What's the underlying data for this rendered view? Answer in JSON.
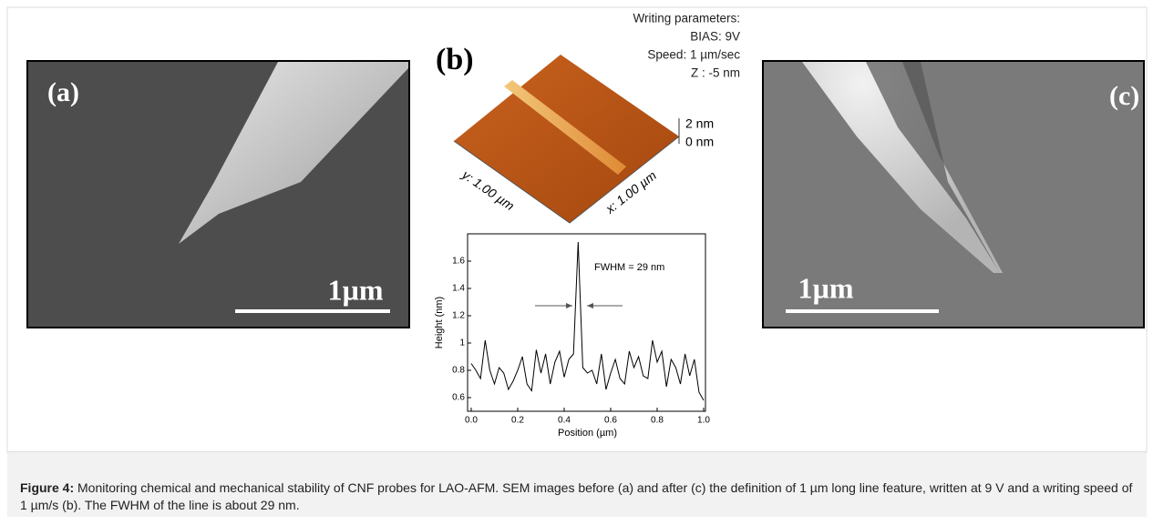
{
  "figure": {
    "panels": {
      "a": {
        "label": "(a)",
        "scale_bar": "1µm"
      },
      "b": {
        "label": "(b)",
        "parameters": [
          "Writing parameters:",
          "BIAS: 9V",
          "Speed: 1 µm/sec",
          "Z : -5 nm"
        ],
        "z_scale": [
          "2 nm",
          "0 nm"
        ],
        "x_axis_3d": "x: 1.00 µm",
        "y_axis_3d": "y: 1.00 µm"
      },
      "c": {
        "label": "(c)",
        "scale_bar": "1µm"
      }
    },
    "caption": {
      "label": "Figure 4:",
      "text": "Monitoring chemical and mechanical stability of CNF probes for LAO-AFM. SEM images before (a) and after (c) the definition of 1 µm long line feature, written at 9 V and a writing speed of 1 µm/s (b). The FWHM of the line is about 29 nm."
    }
  },
  "chart_data": {
    "type": "line",
    "xlabel": "Position (µm)",
    "ylabel": "Height (nm)",
    "annotation": "FWHM = 29 nm",
    "x": [
      0,
      0.02,
      0.04,
      0.06,
      0.08,
      0.1,
      0.12,
      0.14,
      0.16,
      0.18,
      0.2,
      0.22,
      0.24,
      0.26,
      0.28,
      0.3,
      0.32,
      0.34,
      0.36,
      0.38,
      0.4,
      0.42,
      0.44,
      0.46,
      0.48,
      0.5,
      0.52,
      0.54,
      0.56,
      0.58,
      0.6,
      0.62,
      0.64,
      0.66,
      0.68,
      0.7,
      0.72,
      0.74,
      0.76,
      0.78,
      0.8,
      0.82,
      0.84,
      0.86,
      0.88,
      0.9,
      0.92,
      0.94,
      0.96,
      0.98,
      1.0
    ],
    "values": [
      0.85,
      0.8,
      0.74,
      1.02,
      0.8,
      0.7,
      0.82,
      0.78,
      0.66,
      0.72,
      0.8,
      0.9,
      0.7,
      0.65,
      0.95,
      0.78,
      0.92,
      0.7,
      0.86,
      0.94,
      0.75,
      0.88,
      0.92,
      1.74,
      0.82,
      0.78,
      0.8,
      0.7,
      0.92,
      0.66,
      0.78,
      0.88,
      0.74,
      0.7,
      0.94,
      0.82,
      0.9,
      0.76,
      0.74,
      1.02,
      0.86,
      0.94,
      0.68,
      0.88,
      0.82,
      0.7,
      0.92,
      0.76,
      0.88,
      0.64,
      0.58
    ],
    "color": "#000000",
    "xlim": [
      0,
      1
    ],
    "ylim": [
      0.5,
      1.8
    ],
    "xticks": [
      {
        "value": 0,
        "label": "0.0"
      },
      0.2,
      0.4,
      0.6,
      0.8,
      {
        "value": 1,
        "label": "1.0"
      }
    ],
    "yticks": [
      0.6,
      0.8,
      1.0,
      1.2,
      1.4,
      1.6
    ]
  }
}
